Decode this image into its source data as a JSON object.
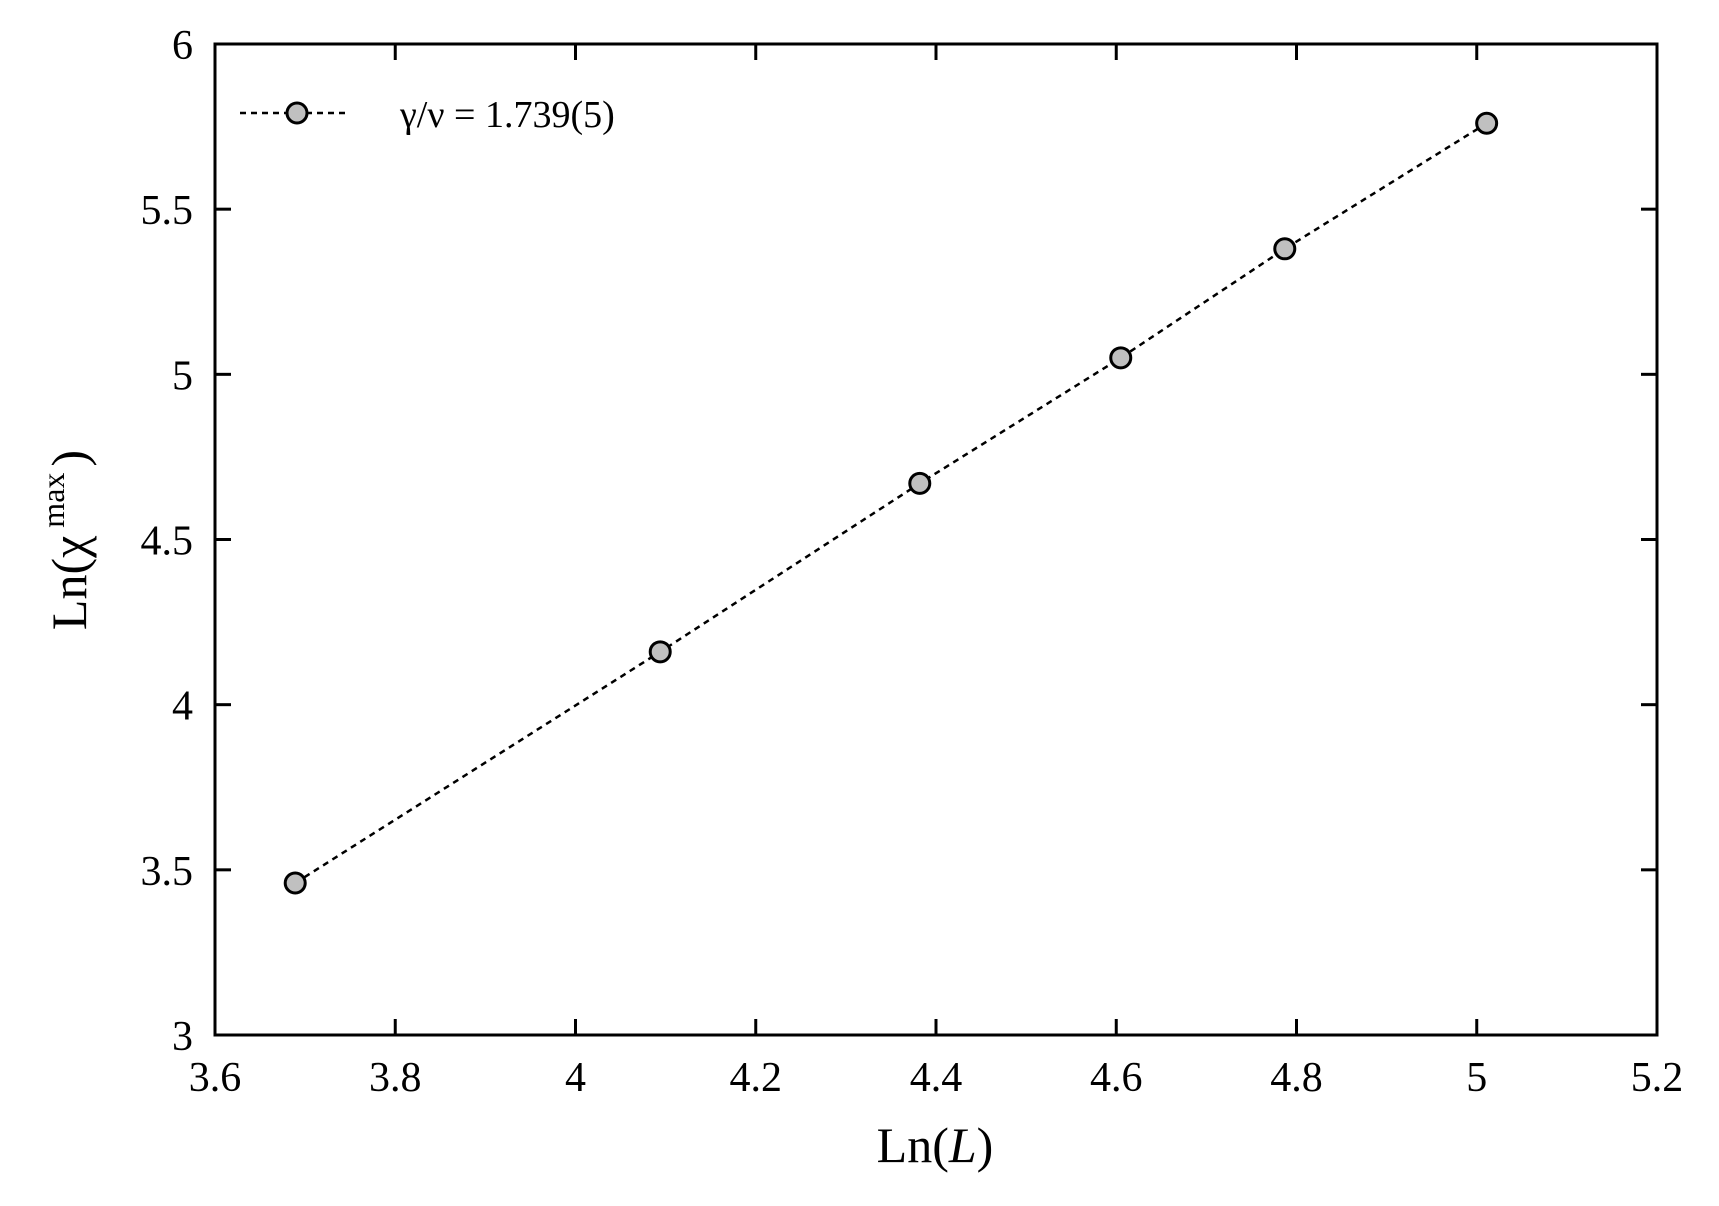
{
  "chart_data": {
    "type": "scatter",
    "xlabel_prefix": "Ln(",
    "xlabel_var": "L",
    "xlabel_suffix": ")",
    "ylabel_prefix": "Ln(χ",
    "ylabel_sup": "max",
    "ylabel_suffix": ")",
    "xlim": [
      3.6,
      5.2
    ],
    "ylim": [
      3,
      6
    ],
    "xticks": [
      3.6,
      3.8,
      4,
      4.2,
      4.4,
      4.6,
      4.8,
      5,
      5.2
    ],
    "xtick_labels": [
      "3.6",
      "3.8",
      "4",
      "4.2",
      "4.4",
      "4.6",
      "4.8",
      "5",
      "5.2"
    ],
    "yticks": [
      3,
      3.5,
      4,
      4.5,
      5,
      5.5,
      6
    ],
    "ytick_labels": [
      "3",
      "3.5",
      "4",
      "4.5",
      "5",
      "5.5",
      "6"
    ],
    "grid": false,
    "legend_position": "top-left",
    "series": [
      {
        "name": "γ/ν = 1.739(5)",
        "line_style": "dotted",
        "marker": "circle",
        "marker_fill": "#c0c0c0",
        "x": [
          3.689,
          4.094,
          4.382,
          4.605,
          4.787,
          5.011
        ],
        "y": [
          3.46,
          4.16,
          4.67,
          5.05,
          5.38,
          5.76
        ]
      }
    ]
  }
}
